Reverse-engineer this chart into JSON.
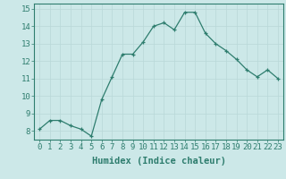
{
  "xlabel": "Humidex (Indice chaleur)",
  "x": [
    0,
    1,
    2,
    3,
    4,
    5,
    6,
    7,
    8,
    9,
    10,
    11,
    12,
    13,
    14,
    15,
    16,
    17,
    18,
    19,
    20,
    21,
    22,
    23
  ],
  "y": [
    8.1,
    8.6,
    8.6,
    8.3,
    8.1,
    7.7,
    9.8,
    11.1,
    12.4,
    12.4,
    13.1,
    14.0,
    14.2,
    13.8,
    14.8,
    14.8,
    13.6,
    13.0,
    12.6,
    12.1,
    11.5,
    11.1,
    11.5,
    11.0
  ],
  "line_color": "#2e7d6e",
  "bg_color": "#cce8e8",
  "grid_color": "#b8d8d8",
  "ylim": [
    7.5,
    15.3
  ],
  "yticks": [
    8,
    9,
    10,
    11,
    12,
    13,
    14,
    15
  ],
  "tick_fontsize": 6.5,
  "label_fontsize": 7.5,
  "tick_color": "#2e7d6e"
}
